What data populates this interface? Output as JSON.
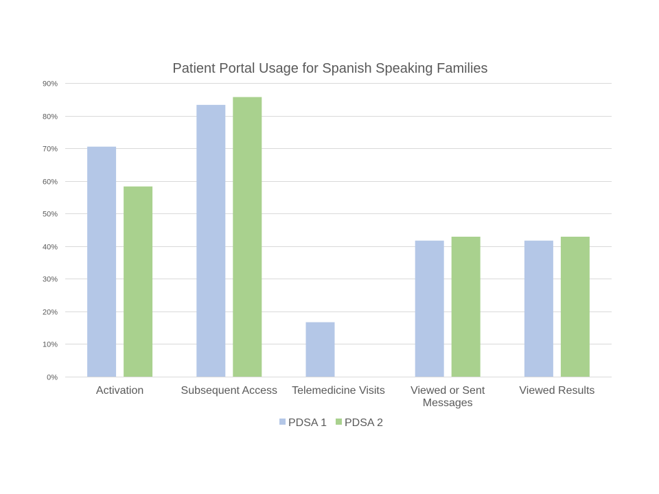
{
  "chart_data": {
    "type": "bar",
    "title": "Patient Portal Usage for Spanish Speaking Families",
    "categories": [
      [
        "Activation"
      ],
      [
        "Subsequent Access"
      ],
      [
        "Telemedicine Visits"
      ],
      [
        "Viewed or Sent",
        "Messages"
      ],
      [
        "Viewed Results"
      ]
    ],
    "series": [
      {
        "name": "PDSA 1",
        "color": "#b4c7e7",
        "values": [
          0.705,
          0.833,
          0.167,
          0.417,
          0.417
        ]
      },
      {
        "name": "PDSA 2",
        "color": "#a9d18e",
        "values": [
          0.583,
          0.857,
          0,
          0.429,
          0.429
        ]
      }
    ],
    "y_ticks": [
      "0%",
      "10%",
      "20%",
      "30%",
      "40%",
      "50%",
      "60%",
      "70%",
      "80%",
      "90%"
    ],
    "ylim": [
      0,
      0.9
    ],
    "grid": true,
    "legend_position": "bottom",
    "xlabel": "",
    "ylabel": ""
  }
}
